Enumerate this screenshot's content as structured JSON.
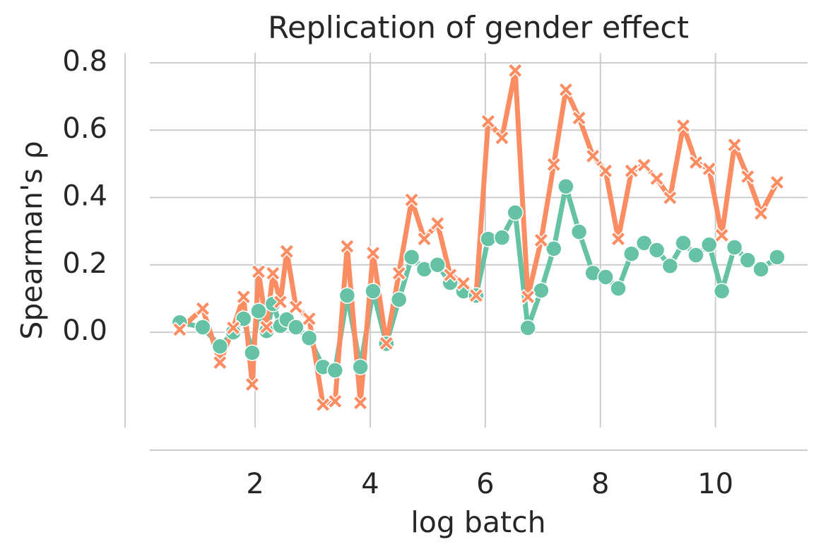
{
  "chart_data": {
    "type": "line",
    "title": "Replication of gender effect",
    "x_label": "log batch",
    "y_label": "Spearman's ρ",
    "x": [
      0.69,
      1.09,
      1.39,
      1.62,
      1.8,
      1.95,
      2.06,
      2.2,
      2.31,
      2.44,
      2.55,
      2.71,
      2.94,
      3.18,
      3.39,
      3.6,
      3.83,
      4.05,
      4.28,
      4.5,
      4.72,
      4.94,
      5.17,
      5.39,
      5.62,
      5.84,
      6.05,
      6.29,
      6.52,
      6.74,
      6.97,
      7.19,
      7.4,
      7.63,
      7.87,
      8.09,
      8.31,
      8.54,
      8.76,
      8.98,
      9.21,
      9.44,
      9.66,
      9.89,
      10.11,
      10.33,
      10.56,
      10.79,
      11.07
    ],
    "series": [
      {
        "color": "#66c2a5",
        "marker": "circle",
        "values": [
          0.029,
          0.015,
          -0.042,
          0.0,
          0.04,
          -0.061,
          0.063,
          0.004,
          0.084,
          0.019,
          0.038,
          0.015,
          -0.017,
          -0.103,
          -0.113,
          0.109,
          -0.103,
          0.122,
          -0.034,
          0.097,
          0.223,
          0.187,
          0.2,
          0.147,
          0.122,
          0.109,
          0.277,
          0.281,
          0.355,
          0.013,
          0.124,
          0.248,
          0.433,
          0.298,
          0.176,
          0.164,
          0.13,
          0.233,
          0.265,
          0.244,
          0.197,
          0.265,
          0.229,
          0.26,
          0.122,
          0.252,
          0.214,
          0.187,
          0.223
        ]
      },
      {
        "color": "#fc8d62",
        "marker": "x",
        "values": [
          0.008,
          0.07,
          -0.09,
          0.013,
          0.105,
          -0.155,
          0.18,
          0.015,
          0.175,
          0.09,
          0.24,
          0.075,
          0.04,
          -0.215,
          -0.205,
          0.255,
          -0.21,
          0.235,
          -0.033,
          0.175,
          0.393,
          0.277,
          0.323,
          0.17,
          0.145,
          0.109,
          0.626,
          0.577,
          0.777,
          0.105,
          0.273,
          0.498,
          0.72,
          0.636,
          0.523,
          0.479,
          0.277,
          0.479,
          0.496,
          0.456,
          0.399,
          0.613,
          0.504,
          0.485,
          0.288,
          0.556,
          0.462,
          0.353,
          0.445
        ]
      }
    ],
    "xlim": [
      0.17,
      11.6
    ],
    "ylim": [
      -0.283,
      0.829
    ],
    "xticks": [
      2,
      4,
      6,
      8,
      10
    ],
    "yticks": [
      {
        "value": 0,
        "label": "0.0"
      },
      0.2,
      0.4,
      0.6,
      0.8
    ],
    "grid": true
  }
}
